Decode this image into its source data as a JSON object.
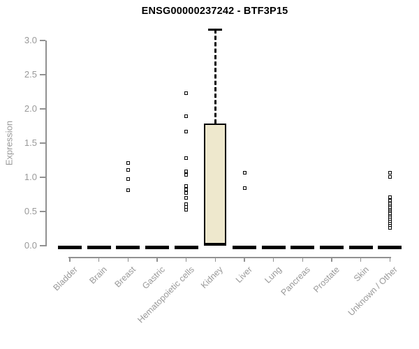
{
  "colors": {
    "background": "#ffffff",
    "title_text": "#000000",
    "axis_gray": "#919191",
    "label_gray": "#999999",
    "box_fill": "#EEE8CD",
    "box_border": "#000000"
  },
  "chart_data": {
    "type": "boxplot",
    "title": "ENSG00000237242 - BTF3P15",
    "ylabel": "Expression",
    "xlabel": "",
    "ylim": [
      0,
      3.2
    ],
    "yticks": [
      0.0,
      0.5,
      1.0,
      1.5,
      2.0,
      2.5,
      3.0
    ],
    "grid": false,
    "legend": null,
    "categories": [
      "Bladder",
      "Brain",
      "Breast",
      "Gastric",
      "Hematopoietic cells",
      "Kidney",
      "Liver",
      "Lung",
      "Pancreas",
      "Prostate",
      "Skin",
      "Unknown / Other"
    ],
    "boxes": [
      {
        "category": "Bladder",
        "low": 0,
        "q1": 0,
        "median": 0,
        "q3": 0,
        "high": 0,
        "outliers": []
      },
      {
        "category": "Brain",
        "low": 0,
        "q1": 0,
        "median": 0,
        "q3": 0,
        "high": 0,
        "outliers": []
      },
      {
        "category": "Breast",
        "low": 0,
        "q1": 0,
        "median": 0,
        "q3": 0,
        "high": 0,
        "outliers": [
          1.21,
          1.11,
          0.97,
          0.81
        ]
      },
      {
        "category": "Gastric",
        "low": 0,
        "q1": 0,
        "median": 0,
        "q3": 0,
        "high": 0,
        "outliers": []
      },
      {
        "category": "Hematopoietic cells",
        "low": 0,
        "q1": 0,
        "median": 0,
        "q3": 0,
        "high": 0,
        "outliers": [
          2.23,
          1.89,
          1.67,
          1.28,
          1.09,
          1.04,
          0.87,
          0.82,
          0.77,
          0.7,
          0.61,
          0.57,
          0.53
        ]
      },
      {
        "category": "Kidney",
        "low": 0.02,
        "q1": 0.02,
        "median": 0.02,
        "q3": 1.79,
        "high": 3.16,
        "outliers": []
      },
      {
        "category": "Liver",
        "low": 0,
        "q1": 0,
        "median": 0,
        "q3": 0,
        "high": 0,
        "outliers": [
          1.07,
          0.84
        ]
      },
      {
        "category": "Lung",
        "low": 0,
        "q1": 0,
        "median": 0,
        "q3": 0,
        "high": 0,
        "outliers": []
      },
      {
        "category": "Pancreas",
        "low": 0,
        "q1": 0,
        "median": 0,
        "q3": 0,
        "high": 0,
        "outliers": []
      },
      {
        "category": "Prostate",
        "low": 0,
        "q1": 0,
        "median": 0,
        "q3": 0,
        "high": 0,
        "outliers": []
      },
      {
        "category": "Skin",
        "low": 0,
        "q1": 0,
        "median": 0,
        "q3": 0,
        "high": 0,
        "outliers": []
      },
      {
        "category": "Unknown / Other",
        "low": 0,
        "q1": 0,
        "median": 0,
        "q3": 0,
        "high": 0,
        "outliers": [
          1.07,
          1.01,
          0.71,
          0.66,
          0.63,
          0.61,
          0.58,
          0.56,
          0.53,
          0.51,
          0.48,
          0.46,
          0.43,
          0.41,
          0.38,
          0.35,
          0.32,
          0.29,
          0.26
        ]
      }
    ]
  }
}
